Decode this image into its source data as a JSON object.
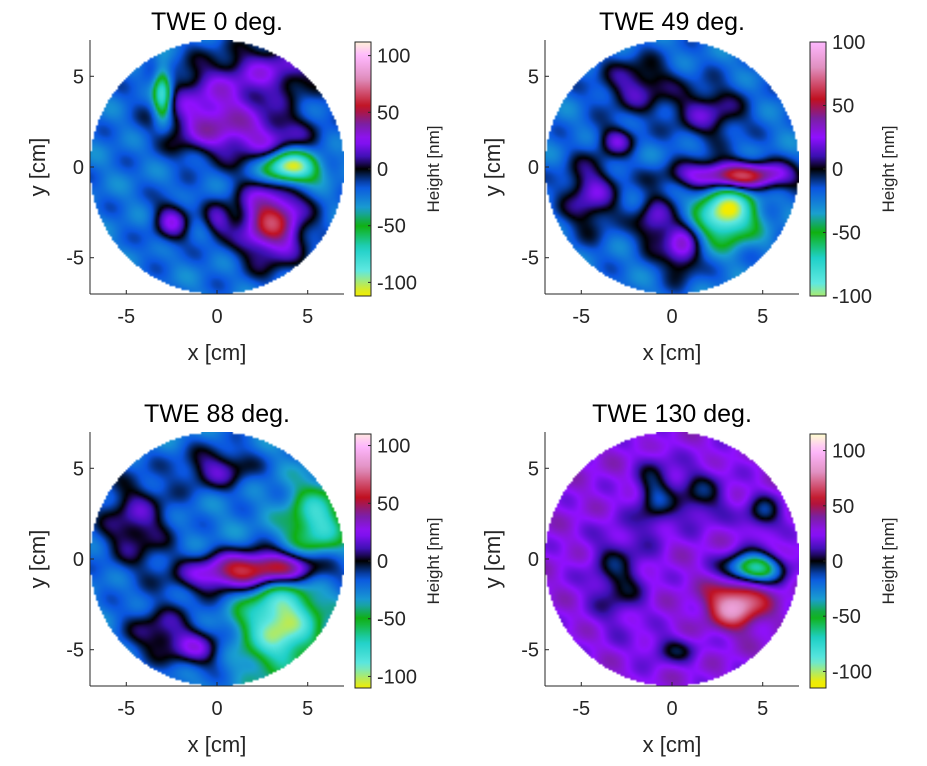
{
  "figure": {
    "colormap_stops": [
      {
        "v": -110,
        "c": "#f2ec00"
      },
      {
        "v": -90,
        "c": "#60e8e0"
      },
      {
        "v": -70,
        "c": "#1fd0c8"
      },
      {
        "v": -50,
        "c": "#10b010"
      },
      {
        "v": -35,
        "c": "#1a9fd0"
      },
      {
        "v": -15,
        "c": "#0a55e0"
      },
      {
        "v": 0,
        "c": "#000000"
      },
      {
        "v": 10,
        "c": "#3a10b0"
      },
      {
        "v": 25,
        "c": "#9010ff"
      },
      {
        "v": 40,
        "c": "#7a20a0"
      },
      {
        "v": 55,
        "c": "#c01020"
      },
      {
        "v": 80,
        "c": "#e090c0"
      },
      {
        "v": 100,
        "c": "#ffb8ff"
      },
      {
        "v": 115,
        "c": "#ffffd0"
      }
    ]
  },
  "chart_data": [
    {
      "type": "heatmap",
      "title": "TWE 0 deg.",
      "xlabel": "x [cm]",
      "ylabel": "y [cm]",
      "xlim": [
        -7,
        7
      ],
      "ylim": [
        -7,
        7
      ],
      "xticks": [
        "-5",
        "0",
        "5"
      ],
      "xtick_values": [
        -5,
        0,
        5
      ],
      "yticks": [
        "5",
        "0",
        "-5"
      ],
      "ytick_values": [
        5,
        0,
        -5
      ],
      "colorbar_label": "Height [nm]",
      "clim": [
        -112,
        112
      ],
      "colorbar_ticks": [
        "100",
        "50",
        "0",
        "-50",
        "-100"
      ],
      "colorbar_tick_values": [
        100,
        50,
        0,
        -50,
        -100
      ],
      "base": -22,
      "features": [
        {
          "x": 0,
          "y": 4,
          "rx": 3,
          "ry": 2,
          "a": 40
        },
        {
          "x": 3,
          "y": 1.5,
          "rx": 2.5,
          "ry": 1.5,
          "a": 38
        },
        {
          "x": -0.5,
          "y": 2,
          "rx": 2.5,
          "ry": 1.5,
          "a": 35
        },
        {
          "x": 3.5,
          "y": 5.5,
          "rx": 2.5,
          "ry": 1.5,
          "a": 35
        },
        {
          "x": 4,
          "y": 0,
          "rx": 1.5,
          "ry": 0.9,
          "a": -105
        },
        {
          "x": 3,
          "y": -3,
          "rx": 1.8,
          "ry": 2.2,
          "a": 80
        },
        {
          "x": -2.5,
          "y": -3,
          "rx": 1,
          "ry": 1.2,
          "a": 40
        },
        {
          "x": 0,
          "y": -3,
          "rx": 0.8,
          "ry": 1,
          "a": 30
        },
        {
          "x": -3,
          "y": 4,
          "rx": 0.5,
          "ry": 1.5,
          "a": -70
        }
      ]
    },
    {
      "type": "heatmap",
      "title": "TWE 49 deg.",
      "xlabel": "x [cm]",
      "ylabel": "y [cm]",
      "xlim": [
        -7,
        7
      ],
      "ylim": [
        -7,
        7
      ],
      "xticks": [
        "-5",
        "0",
        "5"
      ],
      "xtick_values": [
        -5,
        0,
        5
      ],
      "yticks": [
        "5",
        "0",
        "-5"
      ],
      "ytick_values": [
        5,
        0,
        -5
      ],
      "colorbar_label": "Height [nm]",
      "clim": [
        -100,
        100
      ],
      "colorbar_ticks": [
        "100",
        "50",
        "0",
        "-50",
        "-100"
      ],
      "colorbar_tick_values": [
        100,
        50,
        0,
        -50,
        -100
      ],
      "base": -22,
      "features": [
        {
          "x": -2,
          "y": 4.5,
          "rx": 2,
          "ry": 1.5,
          "a": 35
        },
        {
          "x": 2,
          "y": 3,
          "rx": 2,
          "ry": 1.5,
          "a": 35
        },
        {
          "x": 3.5,
          "y": -0.5,
          "rx": 3,
          "ry": 0.8,
          "a": 90
        },
        {
          "x": 3,
          "y": -2.5,
          "rx": 1.5,
          "ry": 1.5,
          "a": -90
        },
        {
          "x": -4.5,
          "y": -1.5,
          "rx": 1.5,
          "ry": 2,
          "a": 40
        },
        {
          "x": 0.5,
          "y": -4.5,
          "rx": 1,
          "ry": 1.5,
          "a": 50
        },
        {
          "x": -1,
          "y": -3,
          "rx": 1,
          "ry": 1.5,
          "a": 38
        },
        {
          "x": -3,
          "y": 1.5,
          "rx": 1,
          "ry": 0.8,
          "a": 35
        }
      ]
    },
    {
      "type": "heatmap",
      "title": "TWE 88 deg.",
      "xlabel": "x [cm]",
      "ylabel": "y [cm]",
      "xlim": [
        -7,
        7
      ],
      "ylim": [
        -7,
        7
      ],
      "xticks": [
        "-5",
        "0",
        "5"
      ],
      "xtick_values": [
        -5,
        0,
        5
      ],
      "yticks": [
        "5",
        "0",
        "-5"
      ],
      "ytick_values": [
        5,
        0,
        -5
      ],
      "colorbar_label": "Height [nm]",
      "clim": [
        -110,
        110
      ],
      "colorbar_ticks": [
        "100",
        "50",
        "0",
        "-50",
        "-100"
      ],
      "colorbar_tick_values": [
        100,
        50,
        0,
        -50,
        -100
      ],
      "base": -25,
      "features": [
        {
          "x": -4.5,
          "y": 2,
          "rx": 2,
          "ry": 2.5,
          "a": 38
        },
        {
          "x": 3,
          "y": -0.5,
          "rx": 3,
          "ry": 1,
          "a": 90
        },
        {
          "x": 0,
          "y": -1,
          "rx": 2.5,
          "ry": 1,
          "a": 40
        },
        {
          "x": 3.5,
          "y": -3.5,
          "rx": 2,
          "ry": 2.5,
          "a": -80
        },
        {
          "x": 5.5,
          "y": 2,
          "rx": 1.5,
          "ry": 2,
          "a": -55
        },
        {
          "x": -3,
          "y": -4,
          "rx": 2,
          "ry": 1.5,
          "a": 35
        },
        {
          "x": 0,
          "y": 5,
          "rx": 2,
          "ry": 1.2,
          "a": 38
        },
        {
          "x": -1,
          "y": -5,
          "rx": 1.5,
          "ry": 1,
          "a": 35
        }
      ]
    },
    {
      "type": "heatmap",
      "title": "TWE 130 deg.",
      "xlabel": "x [cm]",
      "ylabel": "y [cm]",
      "xlim": [
        -7,
        7
      ],
      "ylim": [
        -7,
        7
      ],
      "xticks": [
        "-5",
        "0",
        "5"
      ],
      "xtick_values": [
        -5,
        0,
        5
      ],
      "yticks": [
        "5",
        "0",
        "-5"
      ],
      "ytick_values": [
        5,
        0,
        -5
      ],
      "colorbar_label": "Height [nm]",
      "clim": [
        -115,
        115
      ],
      "colorbar_ticks": [
        "100",
        "50",
        "0",
        "-50",
        "-100"
      ],
      "colorbar_tick_values": [
        100,
        50,
        0,
        -50,
        -100
      ],
      "base": 28,
      "features": [
        {
          "x": -3,
          "y": -1,
          "rx": 1.5,
          "ry": 2.5,
          "a": -30
        },
        {
          "x": -1,
          "y": 3.5,
          "rx": 1,
          "ry": 2,
          "a": -35
        },
        {
          "x": 4.5,
          "y": -0.5,
          "rx": 1.5,
          "ry": 0.8,
          "a": -100
        },
        {
          "x": 3.5,
          "y": -2.5,
          "rx": 1.5,
          "ry": 1.2,
          "a": 60
        },
        {
          "x": 1.5,
          "y": 3.5,
          "rx": 1.5,
          "ry": 1.5,
          "a": -30
        },
        {
          "x": 5,
          "y": 2.5,
          "rx": 1,
          "ry": 1,
          "a": -35
        },
        {
          "x": 0,
          "y": -5,
          "rx": 1.5,
          "ry": 0.8,
          "a": -25
        }
      ]
    }
  ]
}
